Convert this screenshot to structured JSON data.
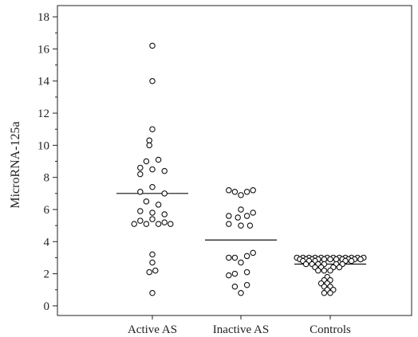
{
  "chart_data": {
    "type": "scatter",
    "title": "",
    "xlabel": "",
    "ylabel": "MicroRNA-125a",
    "ylim": [
      -0.6,
      18.7
    ],
    "yticks_major": [
      0,
      2,
      4,
      6,
      8,
      10,
      12,
      14,
      16,
      18
    ],
    "yticks_minor_step": 1,
    "grid": false,
    "categories": [
      "Active AS",
      "Inactive AS",
      "Controls"
    ],
    "series": [
      {
        "category": "Active AS",
        "median": 7.0,
        "points": [
          {
            "y": 16.2,
            "offset": 0
          },
          {
            "y": 14.0,
            "offset": 0
          },
          {
            "y": 11.0,
            "offset": 0
          },
          {
            "y": 10.3,
            "offset": -0.5
          },
          {
            "y": 10.0,
            "offset": -0.5
          },
          {
            "y": 9.0,
            "offset": -1
          },
          {
            "y": 9.1,
            "offset": 1
          },
          {
            "y": 8.6,
            "offset": -2
          },
          {
            "y": 8.5,
            "offset": 0
          },
          {
            "y": 8.4,
            "offset": 2
          },
          {
            "y": 8.2,
            "offset": -2
          },
          {
            "y": 7.4,
            "offset": 0
          },
          {
            "y": 7.1,
            "offset": -2
          },
          {
            "y": 7.0,
            "offset": 2
          },
          {
            "y": 6.5,
            "offset": -1
          },
          {
            "y": 6.3,
            "offset": 1
          },
          {
            "y": 5.9,
            "offset": -2
          },
          {
            "y": 5.8,
            "offset": 0
          },
          {
            "y": 5.7,
            "offset": 2
          },
          {
            "y": 5.4,
            "offset": 0
          },
          {
            "y": 5.3,
            "offset": -2
          },
          {
            "y": 5.2,
            "offset": 2
          },
          {
            "y": 5.1,
            "offset": -3
          },
          {
            "y": 5.1,
            "offset": -1
          },
          {
            "y": 5.1,
            "offset": 1
          },
          {
            "y": 5.1,
            "offset": 3
          },
          {
            "y": 3.2,
            "offset": 0
          },
          {
            "y": 2.7,
            "offset": 0
          },
          {
            "y": 2.2,
            "offset": 0.5
          },
          {
            "y": 2.1,
            "offset": -0.5
          },
          {
            "y": 0.8,
            "offset": 0
          }
        ]
      },
      {
        "category": "Inactive AS",
        "median": 4.1,
        "points": [
          {
            "y": 7.2,
            "offset": -2
          },
          {
            "y": 7.2,
            "offset": 2
          },
          {
            "y": 7.1,
            "offset": -1
          },
          {
            "y": 7.1,
            "offset": 1
          },
          {
            "y": 6.9,
            "offset": 0
          },
          {
            "y": 6.0,
            "offset": 0
          },
          {
            "y": 5.8,
            "offset": 2
          },
          {
            "y": 5.6,
            "offset": -2
          },
          {
            "y": 5.5,
            "offset": -0.5
          },
          {
            "y": 5.6,
            "offset": 1
          },
          {
            "y": 5.1,
            "offset": -2
          },
          {
            "y": 5.0,
            "offset": 0
          },
          {
            "y": 5.0,
            "offset": 1.5
          },
          {
            "y": 3.3,
            "offset": 2
          },
          {
            "y": 3.1,
            "offset": 1
          },
          {
            "y": 3.0,
            "offset": -2
          },
          {
            "y": 3.0,
            "offset": -1
          },
          {
            "y": 2.7,
            "offset": 0
          },
          {
            "y": 2.1,
            "offset": 1
          },
          {
            "y": 2.0,
            "offset": -1
          },
          {
            "y": 1.9,
            "offset": -2
          },
          {
            "y": 1.3,
            "offset": 1
          },
          {
            "y": 1.2,
            "offset": -1
          },
          {
            "y": 0.8,
            "offset": 0
          }
        ]
      },
      {
        "category": "Controls",
        "median": 2.6,
        "points": [
          {
            "y": 3.0,
            "offset": -5.5
          },
          {
            "y": 3.0,
            "offset": -4.5
          },
          {
            "y": 3.0,
            "offset": -3.5
          },
          {
            "y": 3.0,
            "offset": -2.5
          },
          {
            "y": 3.0,
            "offset": -1.5
          },
          {
            "y": 3.0,
            "offset": -0.5
          },
          {
            "y": 3.0,
            "offset": 0.5
          },
          {
            "y": 3.0,
            "offset": 1.5
          },
          {
            "y": 3.0,
            "offset": 2.5
          },
          {
            "y": 3.0,
            "offset": 3.5
          },
          {
            "y": 3.0,
            "offset": 4.5
          },
          {
            "y": 3.0,
            "offset": 5.5
          },
          {
            "y": 2.9,
            "offset": -5
          },
          {
            "y": 2.9,
            "offset": -4
          },
          {
            "y": 2.9,
            "offset": -3
          },
          {
            "y": 2.9,
            "offset": -2
          },
          {
            "y": 2.9,
            "offset": -1
          },
          {
            "y": 2.9,
            "offset": 0
          },
          {
            "y": 2.9,
            "offset": 1
          },
          {
            "y": 2.9,
            "offset": 2
          },
          {
            "y": 2.9,
            "offset": 3
          },
          {
            "y": 2.9,
            "offset": 4
          },
          {
            "y": 2.9,
            "offset": 5
          },
          {
            "y": 2.8,
            "offset": -4.5
          },
          {
            "y": 2.8,
            "offset": -3.5
          },
          {
            "y": 2.8,
            "offset": -2.5
          },
          {
            "y": 2.8,
            "offset": 2.5
          },
          {
            "y": 2.8,
            "offset": 3.5
          },
          {
            "y": 2.6,
            "offset": -4
          },
          {
            "y": 2.6,
            "offset": -3
          },
          {
            "y": 2.6,
            "offset": -2
          },
          {
            "y": 2.6,
            "offset": -1
          },
          {
            "y": 2.6,
            "offset": 1
          },
          {
            "y": 2.6,
            "offset": 2
          },
          {
            "y": 2.4,
            "offset": -2.5
          },
          {
            "y": 2.4,
            "offset": -1.5
          },
          {
            "y": 2.4,
            "offset": 0.5
          },
          {
            "y": 2.4,
            "offset": 1.5
          },
          {
            "y": 2.2,
            "offset": -2
          },
          {
            "y": 2.2,
            "offset": -1
          },
          {
            "y": 2.2,
            "offset": 0
          },
          {
            "y": 1.8,
            "offset": -0.5
          },
          {
            "y": 1.6,
            "offset": -1
          },
          {
            "y": 1.6,
            "offset": 0
          },
          {
            "y": 1.4,
            "offset": -1.5
          },
          {
            "y": 1.4,
            "offset": -0.5
          },
          {
            "y": 1.2,
            "offset": -1
          },
          {
            "y": 1.2,
            "offset": 0
          },
          {
            "y": 1.0,
            "offset": -0.5
          },
          {
            "y": 1.0,
            "offset": 0.5
          },
          {
            "y": 0.8,
            "offset": -1
          },
          {
            "y": 0.8,
            "offset": 0
          }
        ]
      }
    ]
  }
}
